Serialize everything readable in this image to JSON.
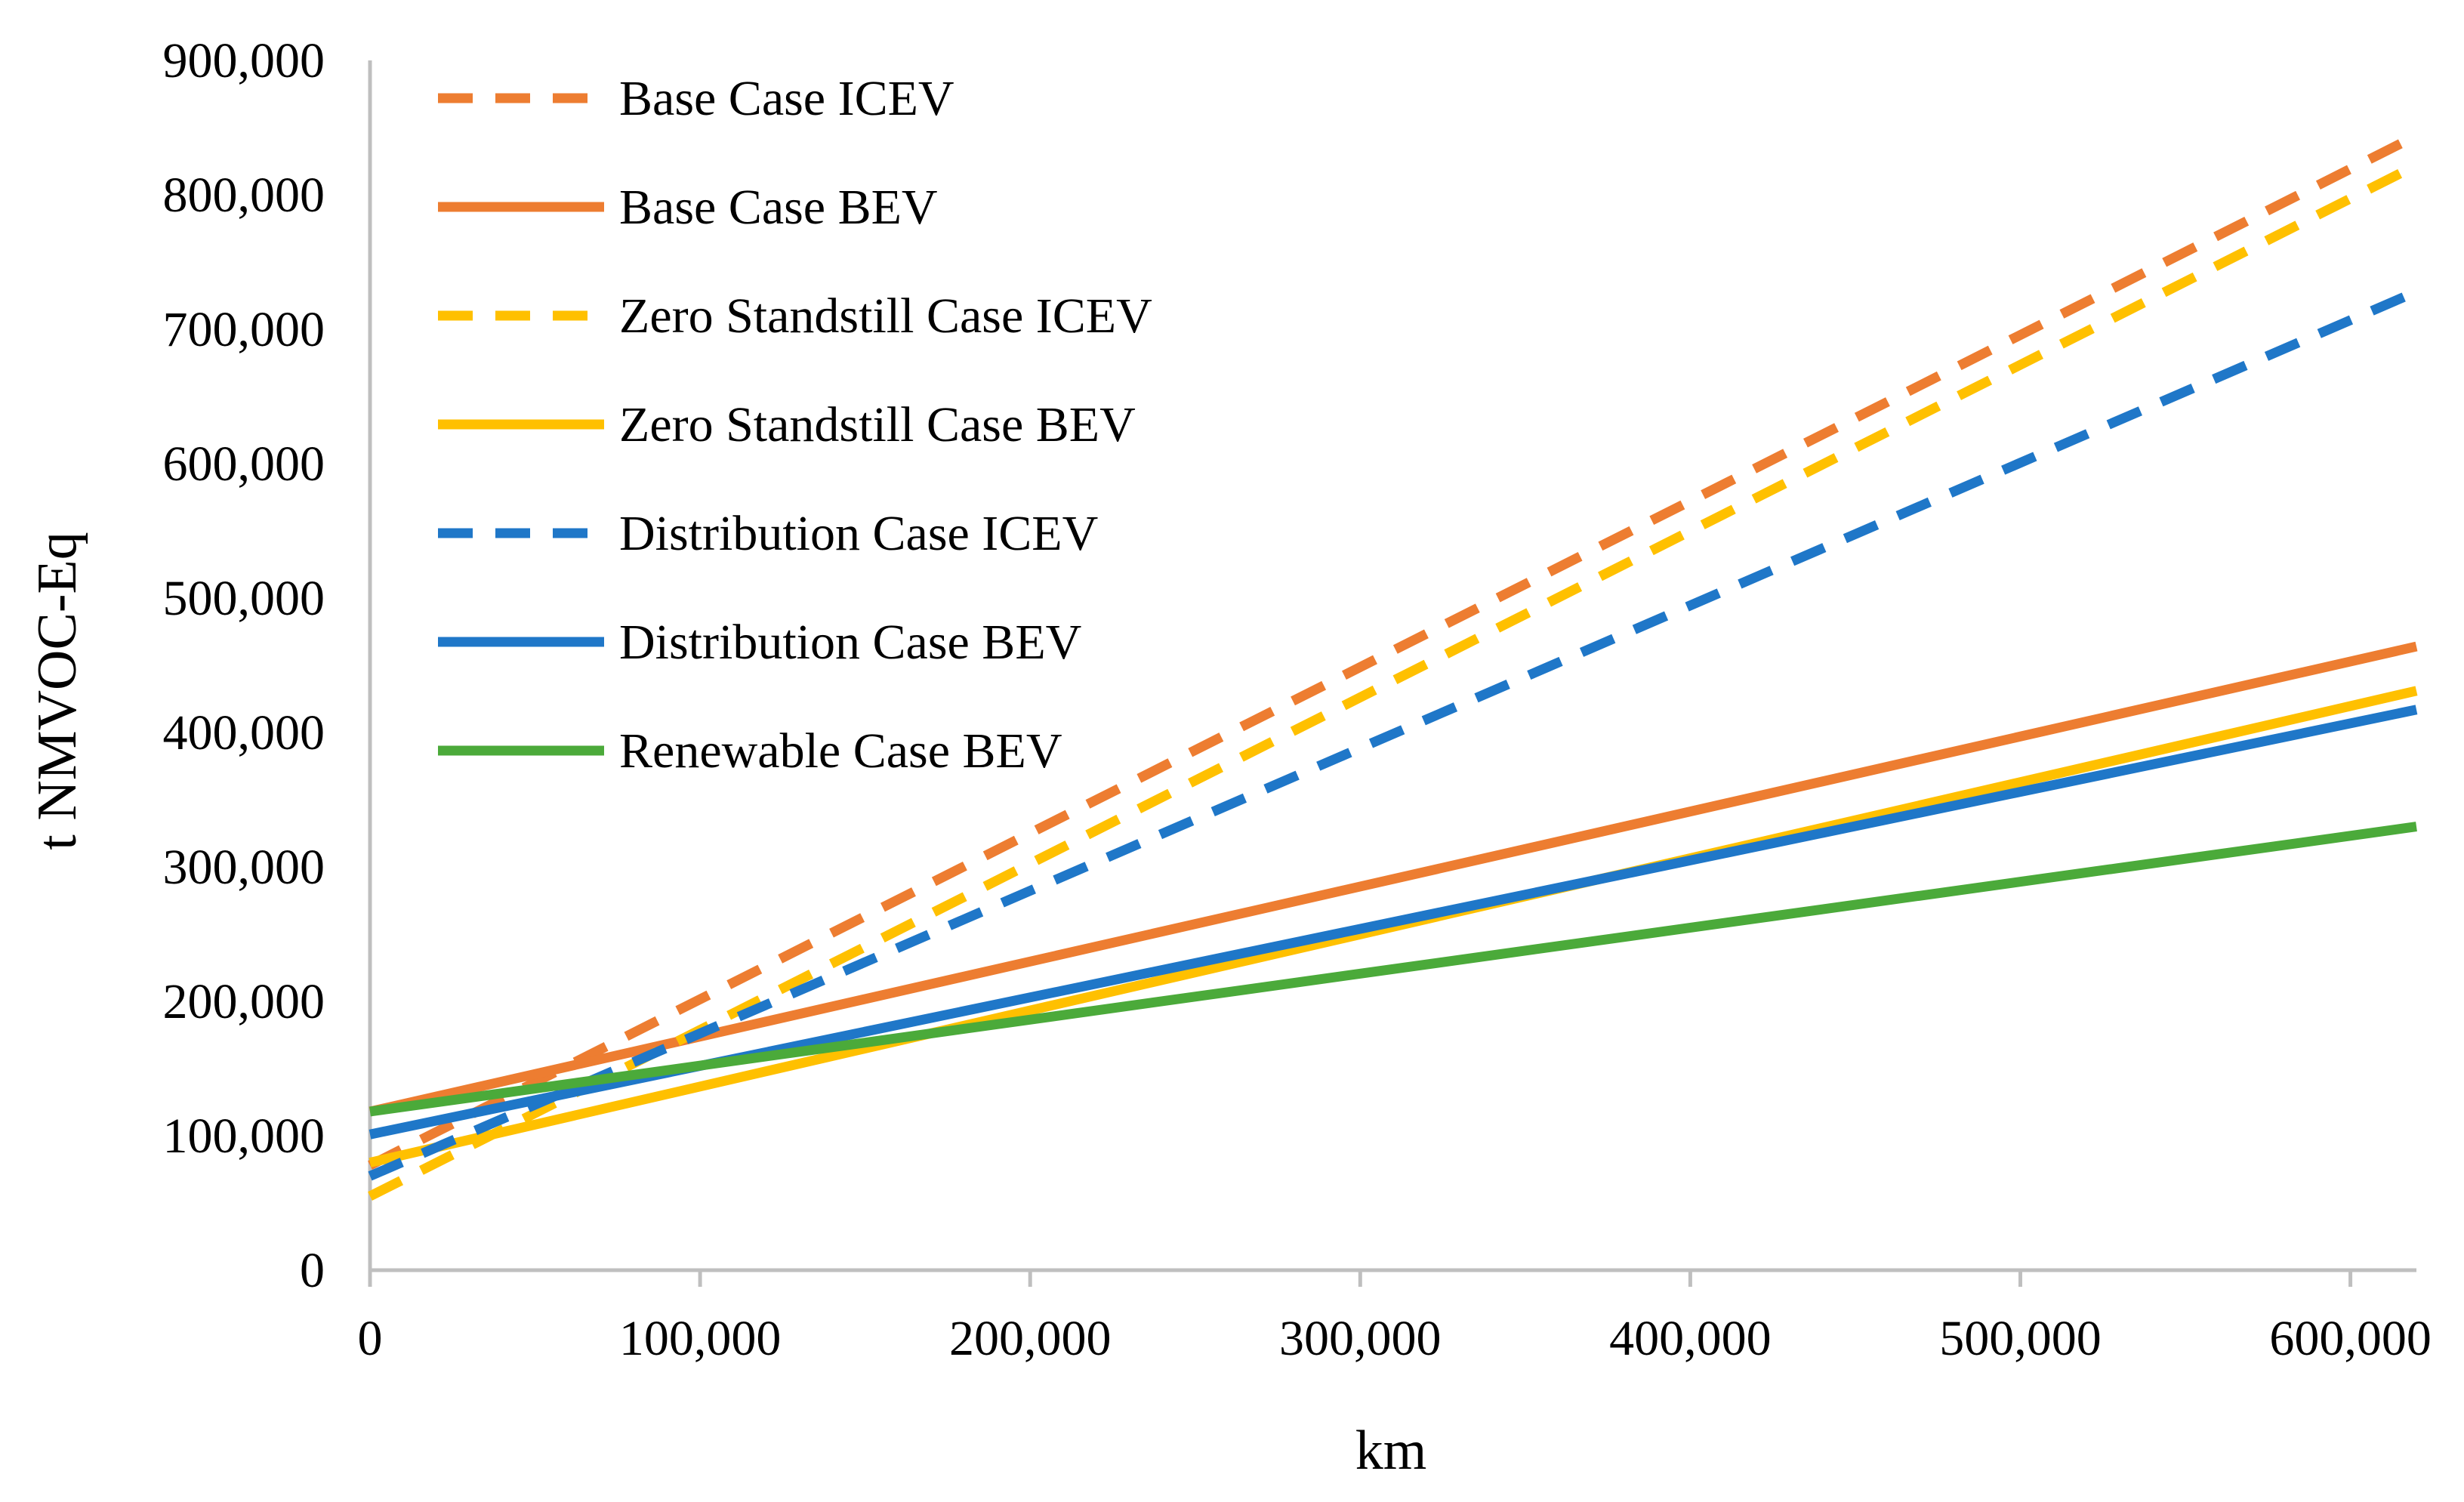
{
  "chart_data": {
    "type": "line",
    "title": "",
    "xlabel": "km",
    "ylabel": "t NMVOC-Eq",
    "xlim": [
      0,
      620000
    ],
    "ylim": [
      0,
      900000
    ],
    "x_ticks": [
      0,
      100000,
      200000,
      300000,
      400000,
      500000,
      600000
    ],
    "x_tick_labels": [
      "0",
      "100,000",
      "200,000",
      "300,000",
      "400,000",
      "500,000",
      "600,000"
    ],
    "y_ticks": [
      0,
      100000,
      200000,
      300000,
      400000,
      500000,
      600000,
      700000,
      800000,
      900000
    ],
    "y_tick_labels": [
      "0",
      "100,000",
      "200,000",
      "300,000",
      "400,000",
      "500,000",
      "600,000",
      "700,000",
      "800,000",
      "900,000"
    ],
    "grid": false,
    "legend_position": "top-left",
    "series": [
      {
        "name": "Base Case ICEV",
        "color": "#ED7D31",
        "dash": true,
        "x": [
          0,
          620000
        ],
        "values": [
          78000,
          844000
        ]
      },
      {
        "name": "Base Case BEV",
        "color": "#ED7D31",
        "dash": false,
        "x": [
          0,
          620000
        ],
        "values": [
          118000,
          464000
        ]
      },
      {
        "name": "Zero Standstill Case ICEV",
        "color": "#FFC000",
        "dash": true,
        "x": [
          0,
          620000
        ],
        "values": [
          55000,
          822000
        ]
      },
      {
        "name": "Zero Standstill Case BEV",
        "color": "#FFC000",
        "dash": false,
        "x": [
          0,
          620000
        ],
        "values": [
          80000,
          431000
        ]
      },
      {
        "name": "Distribution Case ICEV",
        "color": "#1F77C8",
        "dash": true,
        "x": [
          0,
          620000
        ],
        "values": [
          70000,
          728000
        ]
      },
      {
        "name": "Distribution Case BEV",
        "color": "#1F77C8",
        "dash": false,
        "x": [
          0,
          620000
        ],
        "values": [
          101000,
          417000
        ]
      },
      {
        "name": "Renewable Case BEV",
        "color": "#4BAA3A",
        "dash": false,
        "x": [
          0,
          620000
        ],
        "values": [
          118000,
          330000
        ]
      }
    ]
  }
}
